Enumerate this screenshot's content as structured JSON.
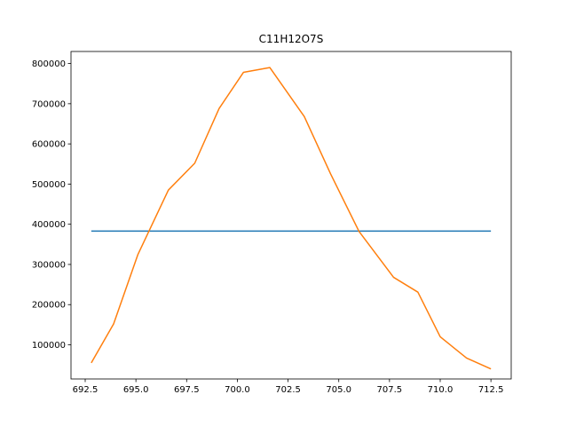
{
  "chart_data": {
    "type": "line",
    "title": "C11H12O7S",
    "xlabel": "",
    "ylabel": "",
    "xlim": [
      691.8,
      713.5
    ],
    "ylim": [
      15000,
      830000
    ],
    "x_ticks": [
      692.5,
      695.0,
      697.5,
      700.0,
      702.5,
      705.0,
      707.5,
      710.0,
      712.5
    ],
    "x_tick_labels": [
      "692.5",
      "695.0",
      "697.5",
      "700.0",
      "702.5",
      "705.0",
      "707.5",
      "710.0",
      "712.5"
    ],
    "y_ticks": [
      100000,
      200000,
      300000,
      400000,
      500000,
      600000,
      700000,
      800000
    ],
    "y_tick_labels": [
      "100000",
      "200000",
      "300000",
      "400000",
      "500000",
      "600000",
      "700000",
      "800000"
    ],
    "grid": false,
    "series": [
      {
        "color": "#1f77b4",
        "x": [
          692.8,
          712.5
        ],
        "y": [
          383000,
          383000
        ]
      },
      {
        "color": "#ff7f0e",
        "x": [
          692.8,
          693.9,
          695.1,
          696.6,
          697.9,
          699.1,
          700.3,
          701.6,
          703.3,
          704.6,
          706.0,
          707.7,
          708.9,
          710.0,
          711.3,
          712.5
        ],
        "y": [
          55000,
          152000,
          325000,
          485000,
          552000,
          688000,
          778000,
          790000,
          668000,
          525000,
          382000,
          268000,
          231000,
          120000,
          67000,
          40000
        ]
      }
    ]
  }
}
